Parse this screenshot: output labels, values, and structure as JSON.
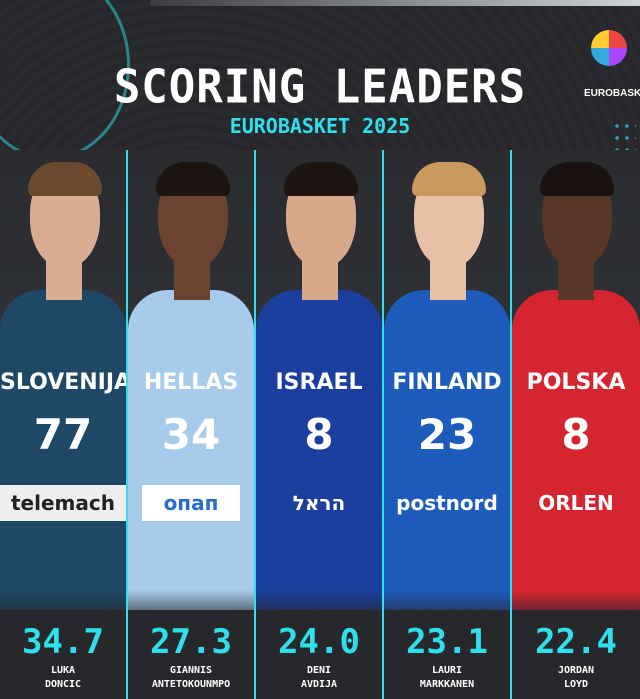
{
  "header": {
    "title": "SCORING LEADERS",
    "subtitle": "EUROBASKET 2025",
    "logo_text": "EUROBASKET"
  },
  "players": [
    {
      "first": "LUKA",
      "last": "DONCIC",
      "ppg": "34.7",
      "jersey_name": "SLOVENIJA",
      "number": "77",
      "sponsor": "telemach",
      "color": "#1f4866",
      "skin": "#d9ad92",
      "hair": "#6b4a30"
    },
    {
      "first": "GIANNIS",
      "last": "ANTETOKOUNMPO",
      "ppg": "27.3",
      "jersey_name": "HELLAS",
      "number": "34",
      "sponsor": "опап",
      "color": "#a7cbea",
      "skin": "#6b4330",
      "hair": "#1b1411"
    },
    {
      "first": "DENI",
      "last": "AVDIJA",
      "ppg": "24.0",
      "jersey_name": "ISRAEL",
      "number": "8",
      "sponsor": "הראל",
      "color": "#1b3f9e",
      "skin": "#d7a98a",
      "hair": "#1c1512"
    },
    {
      "first": "LAURI",
      "last": "MARKKANEN",
      "ppg": "23.1",
      "jersey_name": "FINLAND",
      "number": "23",
      "sponsor": "postnord",
      "color": "#1e5cbb",
      "skin": "#e8c0a6",
      "hair": "#c99a5e"
    },
    {
      "first": "JORDAN",
      "last": "LOYD",
      "ppg": "22.4",
      "jersey_name": "POLSKA",
      "number": "8",
      "sponsor": "ORLEN",
      "color": "#d52530",
      "skin": "#5a3626",
      "hair": "#1a1210"
    }
  ],
  "colors": {
    "accent": "#2fe0ea",
    "background": "#26282c"
  }
}
